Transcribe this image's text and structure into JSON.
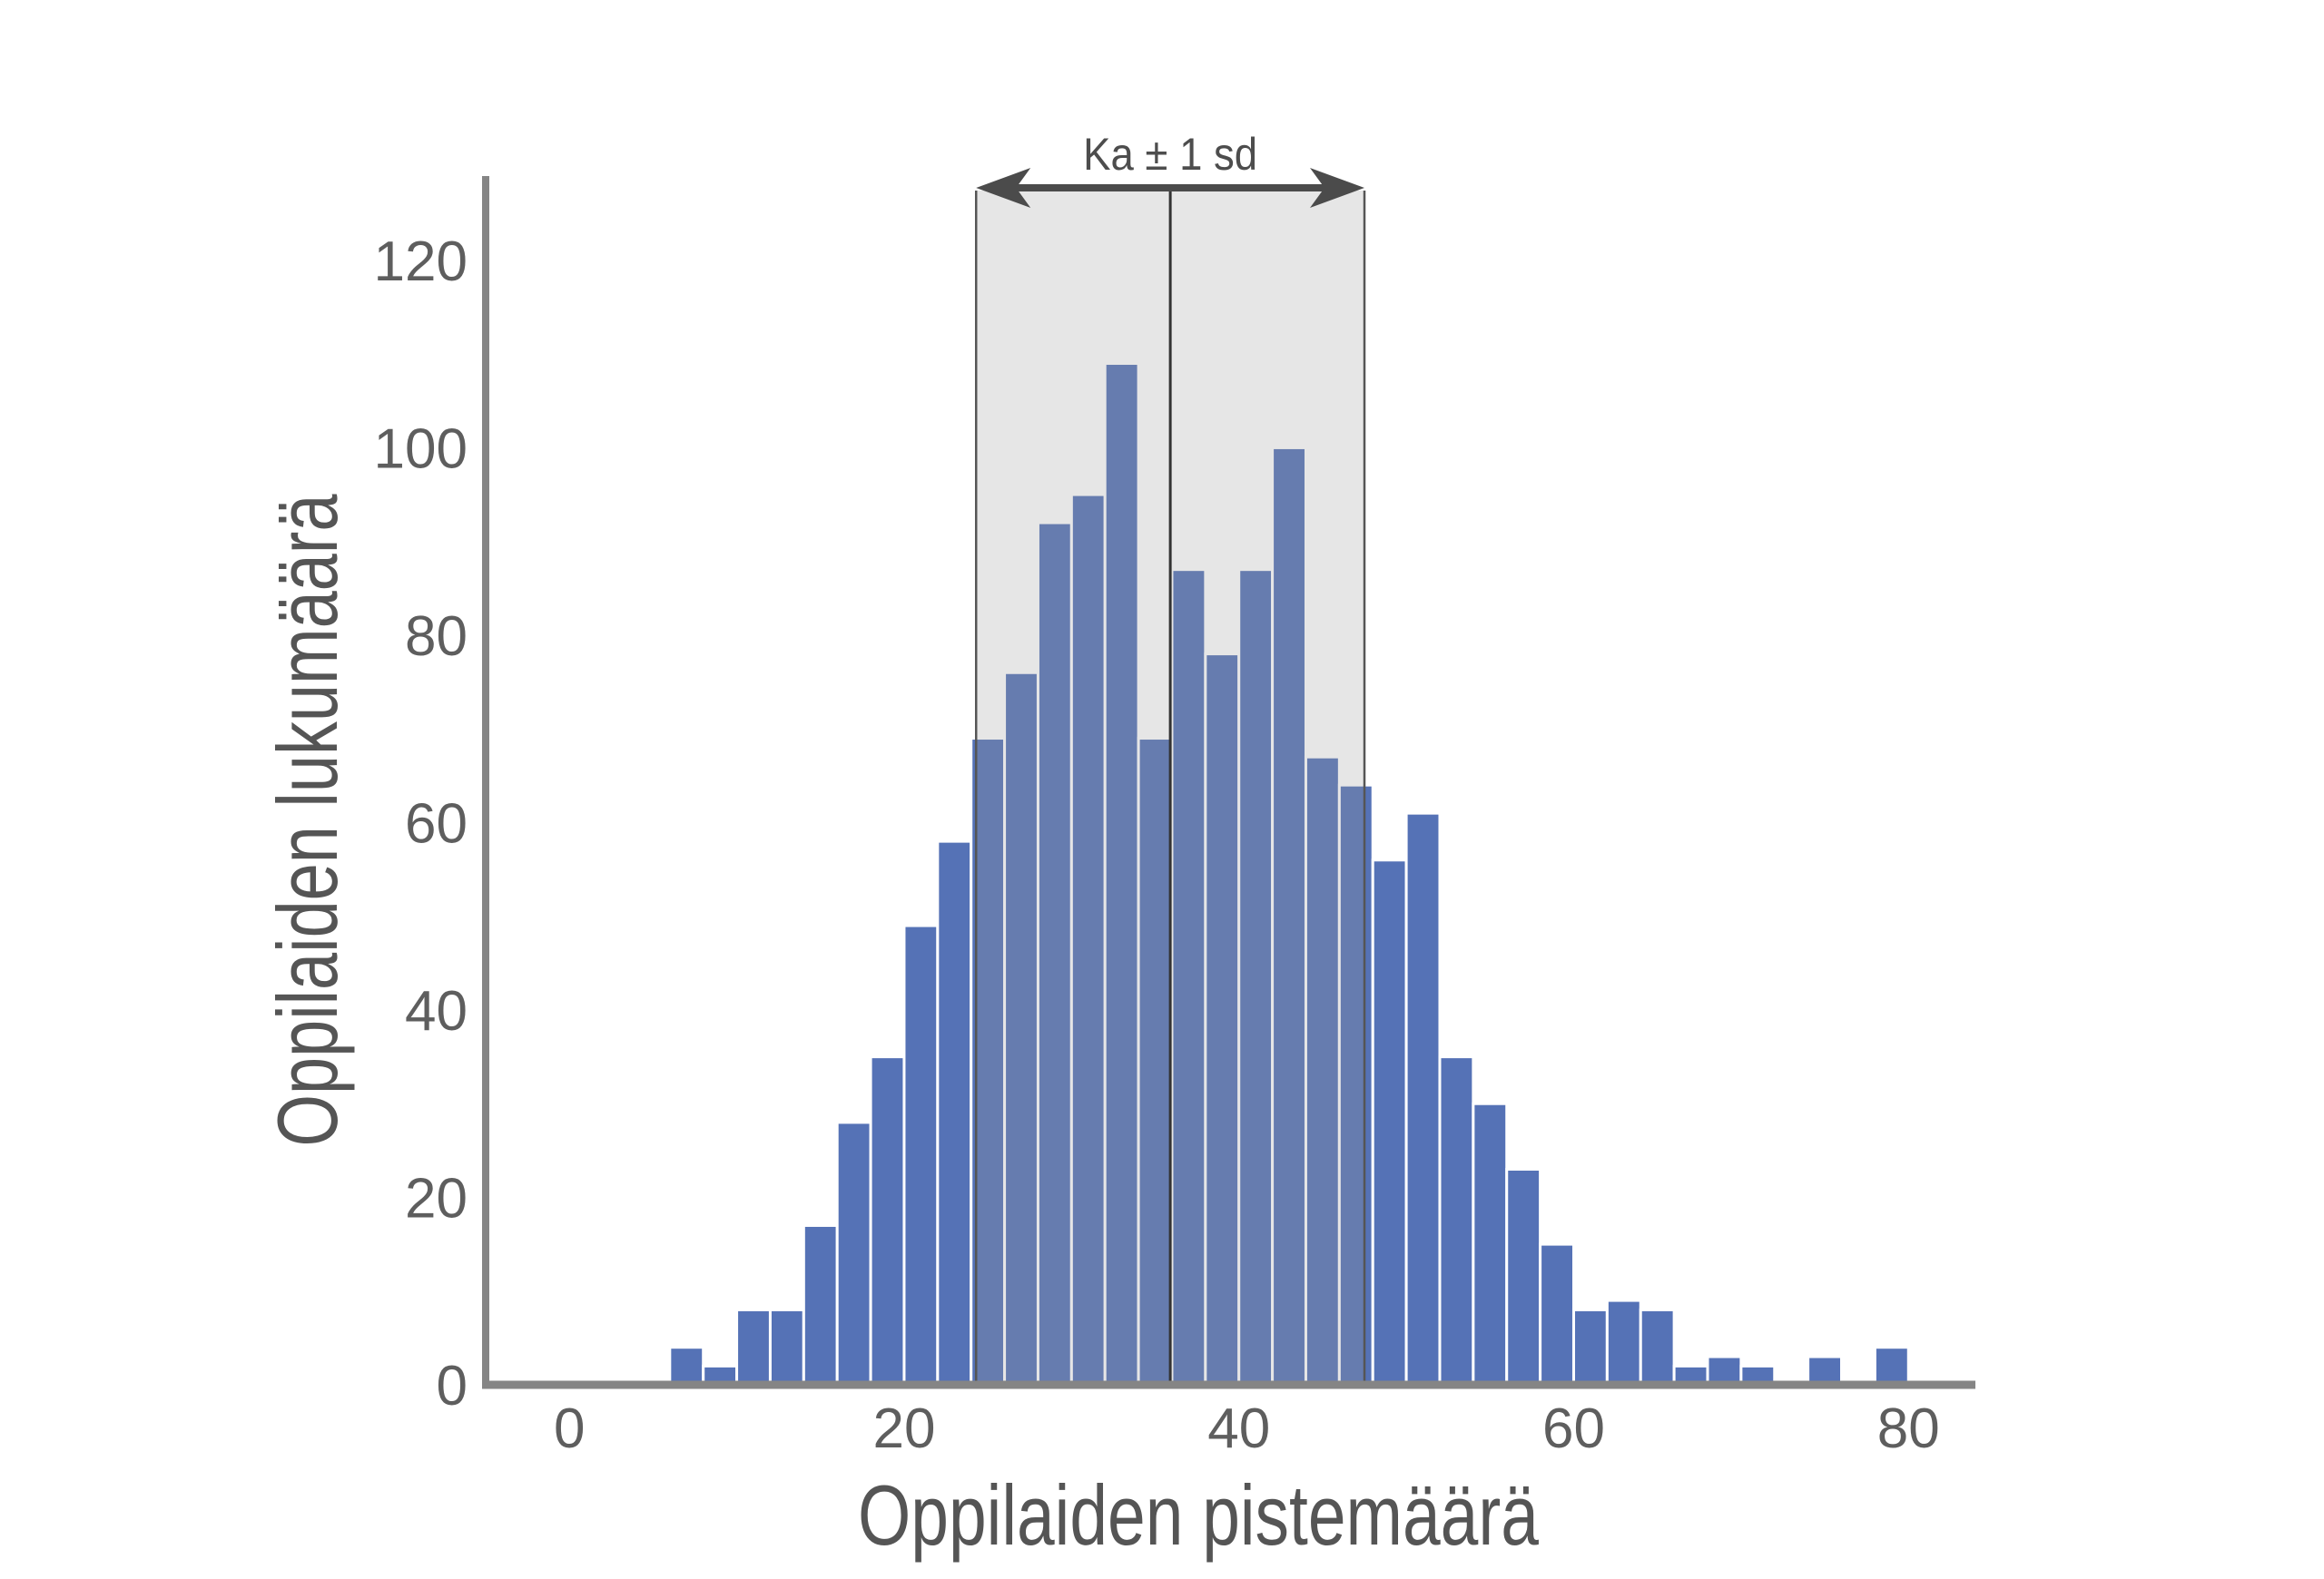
{
  "chart_data": {
    "type": "bar",
    "xlabel": "Oppilaiden pistemäärä",
    "ylabel": "Oppilaiden lukumäärä",
    "x_ticks": [
      0,
      20,
      40,
      60,
      80
    ],
    "y_ticks": [
      0,
      20,
      40,
      60,
      80,
      100,
      120
    ],
    "xlim": [
      -5,
      84
    ],
    "ylim": [
      0,
      129
    ],
    "grid": false,
    "legend": "none",
    "bin_width": 2,
    "bin_start": [
      6,
      8,
      10,
      12,
      14,
      16,
      18,
      20,
      22,
      24,
      26,
      28,
      30,
      32,
      34,
      36,
      38,
      40,
      42,
      44,
      46,
      48,
      50,
      52,
      54,
      56,
      58,
      60,
      62,
      64,
      66,
      68,
      70,
      72,
      74,
      76,
      78
    ],
    "values": [
      4,
      2,
      8,
      8,
      17,
      28,
      35,
      49,
      58,
      69,
      76,
      92,
      95,
      109,
      69,
      87,
      78,
      87,
      100,
      67,
      64,
      56,
      61,
      35,
      30,
      23,
      15,
      8,
      9,
      8,
      2,
      3,
      2,
      0,
      3,
      0,
      4
    ],
    "annotation": {
      "label": "Ka ± 1 sd",
      "mean": 35.9,
      "sd": 11.6
    },
    "colors": {
      "bar": "#5572b6",
      "bar_edge": "#ffffff",
      "band": "rgba(154,154,154,0.25)",
      "band_edge": "#555555",
      "mean_line": "#333333",
      "axis": "#858585",
      "arrow": "#4b4b4b"
    }
  }
}
